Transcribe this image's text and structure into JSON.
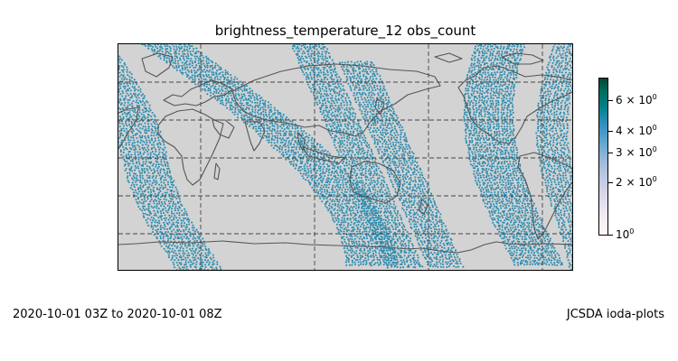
{
  "title": "brightness_temperature_12 obs_count",
  "footer": {
    "time_range": "2020-10-01 03Z to 2020-10-01 08Z",
    "credit": "JCSDA ioda-plots"
  },
  "map": {
    "projection": "plate-carree",
    "background_color": "#d3d3d3",
    "coastline_color": "#555555",
    "gridlines": "dashed",
    "marker_color": "#2b8cb0"
  },
  "colorbar": {
    "scale": "log",
    "colormap": "PuBuGn",
    "range": [
      1,
      8
    ],
    "ticks": [
      {
        "value": 1,
        "base": "10",
        "exp": "0"
      },
      {
        "value": 2,
        "base": "2 × 10",
        "exp": "0"
      },
      {
        "value": 3,
        "base": "3 × 10",
        "exp": "0"
      },
      {
        "value": 4,
        "base": "4 × 10",
        "exp": "0"
      },
      {
        "value": 6,
        "base": "6 × 10",
        "exp": "0"
      }
    ]
  }
}
